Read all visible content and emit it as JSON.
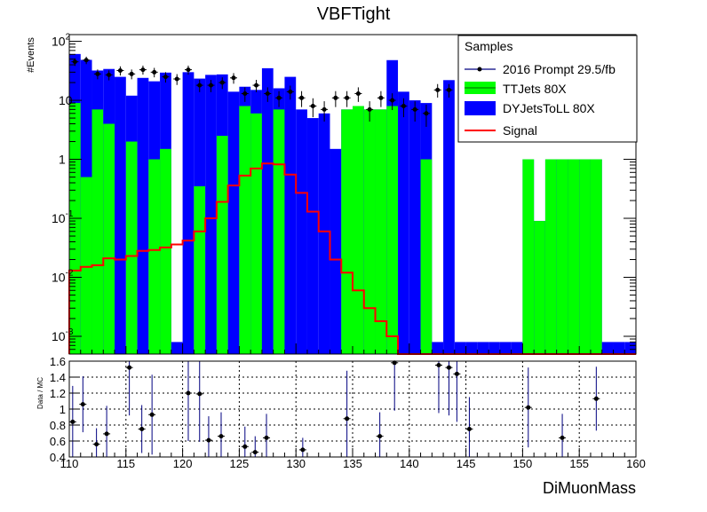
{
  "colors": {
    "ttjets": "#00ff00",
    "dyjets": "#0000ff",
    "signal": "#ff0000",
    "data_marker": "#000000",
    "data_line": "#000080",
    "grid": "#000000"
  },
  "chart_data": [
    {
      "type": "bar",
      "stacked": true,
      "log_y": true,
      "title": "VBFTight",
      "xlabel": "DiMuonMass",
      "ylabel": "#Events",
      "xlim": [
        110,
        160
      ],
      "ylim": [
        0.0005,
        130
      ],
      "bin_width": 1,
      "y_tick_labels": [
        {
          "value": 0.001,
          "base": "10",
          "exp": "-3"
        },
        {
          "value": 0.01,
          "base": "10",
          "exp": "-2"
        },
        {
          "value": 0.1,
          "base": "10",
          "exp": "-1"
        },
        {
          "value": 1,
          "base": "1",
          "exp": ""
        },
        {
          "value": 10,
          "base": "10",
          "exp": ""
        },
        {
          "value": 100,
          "base": "10",
          "exp": "2"
        }
      ],
      "legend": {
        "title": "Samples",
        "position": "top-right",
        "entries": [
          "2016 Prompt 29.5/fb",
          "TTJets 80X",
          "DYJetsToLL 80X",
          "Signal"
        ]
      },
      "bin_edges": [
        110,
        111,
        112,
        113,
        114,
        115,
        116,
        117,
        118,
        119,
        120,
        121,
        122,
        123,
        124,
        125,
        126,
        127,
        128,
        129,
        130,
        131,
        132,
        133,
        134,
        135,
        136,
        137,
        138,
        139,
        140,
        141,
        142,
        143,
        144,
        145,
        146,
        147,
        148,
        149,
        150,
        151,
        152,
        153,
        154,
        155,
        156,
        157,
        158,
        159,
        160
      ],
      "series": [
        {
          "name": "TTJets 80X",
          "values": [
            9,
            0.5,
            7,
            4,
            0.0004,
            2,
            0.0004,
            1,
            1.5,
            0.0004,
            0.0004,
            0.35,
            0.0004,
            2.5,
            0.0004,
            8,
            6,
            0.0004,
            7,
            0.0004,
            0.0004,
            0.0004,
            0.0004,
            0.0004,
            7,
            8,
            7,
            7,
            8,
            0.0004,
            0.0004,
            1,
            0.0004,
            0.0004,
            0.0004,
            0.0004,
            0.0004,
            0.0004,
            0.0004,
            0.0004,
            1,
            0.09,
            1,
            1,
            1,
            1,
            1,
            0.0004,
            0.0004,
            0.0004
          ]
        },
        {
          "name": "DYJetsToLL 80X",
          "values": [
            52,
            48,
            25,
            30,
            25,
            10,
            24,
            20,
            28,
            0.0004,
            30,
            23,
            27,
            25,
            14,
            9,
            9,
            35,
            9,
            25,
            7,
            5,
            6,
            1.5,
            0.0004,
            0.0004,
            0.0004,
            0.0004,
            40,
            14,
            10,
            8,
            0.0004,
            22,
            0.0004,
            0.0004,
            0.0004,
            0.0004,
            0.0004,
            0.0004,
            0.0004,
            0.0004,
            0.0004,
            0.0004,
            0.0004,
            0.0004,
            0.0004,
            0.0004,
            0.0004,
            0.0004
          ]
        },
        {
          "name": "Signal",
          "values": [
            0.013,
            0.015,
            0.016,
            0.021,
            0.02,
            0.023,
            0.028,
            0.029,
            0.032,
            0.036,
            0.042,
            0.06,
            0.1,
            0.19,
            0.36,
            0.53,
            0.7,
            0.85,
            0.82,
            0.55,
            0.27,
            0.13,
            0.06,
            0.02,
            0.012,
            0.006,
            0.003,
            0.0018,
            0.001,
            0.0005,
            0.0005,
            0.0005,
            0.0005,
            0.0005,
            0.0005,
            0.0005,
            0.0005,
            0.0005,
            0.0005,
            0.0005,
            0.0005,
            0.0005,
            0.0005,
            0.0005,
            0.0005,
            0.0005,
            0.0005,
            0.0005,
            0.0005,
            0.0005
          ]
        },
        {
          "name": "2016 Prompt 29.5/fb",
          "points": [
            {
              "x": 110.5,
              "y": 45
            },
            {
              "x": 111.5,
              "y": 48
            },
            {
              "x": 112.5,
              "y": 28
            },
            {
              "x": 113.5,
              "y": 27
            },
            {
              "x": 114.5,
              "y": 32
            },
            {
              "x": 115.5,
              "y": 28
            },
            {
              "x": 116.5,
              "y": 33
            },
            {
              "x": 117.5,
              "y": 30
            },
            {
              "x": 118.5,
              "y": 25
            },
            {
              "x": 119.5,
              "y": 23
            },
            {
              "x": 120.5,
              "y": 33
            },
            {
              "x": 121.5,
              "y": 18
            },
            {
              "x": 122.5,
              "y": 18
            },
            {
              "x": 123.5,
              "y": 20
            },
            {
              "x": 124.5,
              "y": 24
            },
            {
              "x": 125.5,
              "y": 13
            },
            {
              "x": 126.5,
              "y": 18
            },
            {
              "x": 127.5,
              "y": 13
            },
            {
              "x": 128.5,
              "y": 11
            },
            {
              "x": 129.5,
              "y": 14
            },
            {
              "x": 130.5,
              "y": 11
            },
            {
              "x": 131.5,
              "y": 8
            },
            {
              "x": 132.5,
              "y": 7
            },
            {
              "x": 133.5,
              "y": 11
            },
            {
              "x": 134.5,
              "y": 11
            },
            {
              "x": 135.5,
              "y": 13
            },
            {
              "x": 136.5,
              "y": 7
            },
            {
              "x": 137.5,
              "y": 11
            },
            {
              "x": 138.5,
              "y": 10
            },
            {
              "x": 139.5,
              "y": 8
            },
            {
              "x": 140.5,
              "y": 7
            },
            {
              "x": 141.5,
              "y": 6
            },
            {
              "x": 142.5,
              "y": 15
            },
            {
              "x": 143.5,
              "y": 15
            }
          ]
        }
      ]
    },
    {
      "type": "scatter",
      "ylabel": "Data / MC",
      "xlim": [
        110,
        160
      ],
      "ylim": [
        0.4,
        1.6
      ],
      "x_ticks": [
        110,
        115,
        120,
        125,
        130,
        135,
        140,
        145,
        150,
        155,
        160
      ],
      "x_tick_labels": [
        "110",
        "115",
        "120",
        "125",
        "130",
        "135",
        "140",
        "145",
        "150",
        "155",
        "160"
      ],
      "y_ticks": [
        0.4,
        0.6,
        0.8,
        1.0,
        1.2,
        1.4,
        1.6
      ],
      "y_tick_labels": [
        "0.4",
        "0.6",
        "0.8",
        "1",
        "1.2",
        "1.4",
        "1.6"
      ],
      "grid": true,
      "points": [
        {
          "x": 110.3,
          "y": 0.84,
          "err": 0.45
        },
        {
          "x": 111.2,
          "y": 1.06,
          "err": 0.35
        },
        {
          "x": 112.4,
          "y": 0.56,
          "err": 0.2
        },
        {
          "x": 113.3,
          "y": 0.69,
          "err": 0.35
        },
        {
          "x": 115.3,
          "y": 1.52,
          "err": 0.6
        },
        {
          "x": 116.4,
          "y": 0.75,
          "err": 0.3
        },
        {
          "x": 117.3,
          "y": 0.93,
          "err": 0.5
        },
        {
          "x": 120.5,
          "y": 1.2,
          "err": 0.6
        },
        {
          "x": 121.5,
          "y": 1.19,
          "err": 0.6
        },
        {
          "x": 122.3,
          "y": 0.61,
          "err": 0.3
        },
        {
          "x": 123.4,
          "y": 0.66,
          "err": 0.3
        },
        {
          "x": 125.5,
          "y": 0.53,
          "err": 0.25
        },
        {
          "x": 126.4,
          "y": 0.46,
          "err": 0.2
        },
        {
          "x": 127.4,
          "y": 0.64,
          "err": 0.3
        },
        {
          "x": 130.6,
          "y": 0.49,
          "err": 0.15
        },
        {
          "x": 134.5,
          "y": 0.88,
          "err": 0.6
        },
        {
          "x": 137.4,
          "y": 0.66,
          "err": 0.3
        },
        {
          "x": 138.7,
          "y": 1.58,
          "err": 0.6
        },
        {
          "x": 142.6,
          "y": 1.55,
          "err": 0.6
        },
        {
          "x": 143.5,
          "y": 1.52,
          "err": 0.6
        },
        {
          "x": 144.2,
          "y": 1.44,
          "err": 0.6
        },
        {
          "x": 145.3,
          "y": 0.75,
          "err": 0.4
        },
        {
          "x": 150.5,
          "y": 1.02,
          "err": 0.5
        },
        {
          "x": 153.5,
          "y": 0.64,
          "err": 0.3
        },
        {
          "x": 156.5,
          "y": 1.13,
          "err": 0.4
        }
      ]
    }
  ]
}
